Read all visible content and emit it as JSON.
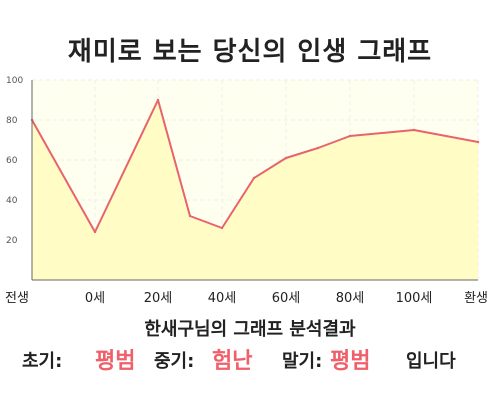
{
  "title": "재미로 보는 당신의 인생 그래프",
  "colors": {
    "line": "#e8636c",
    "fill": "#fffdc0",
    "plot_background": "#fffff0",
    "grid": "#ececec",
    "axis": "#666666",
    "highlight": "#f0606a"
  },
  "chart_data": {
    "type": "area",
    "x_ticks": [
      "전생",
      "0세",
      "20세",
      "40세",
      "60세",
      "80세",
      "100세",
      "환생"
    ],
    "y_ticks": [
      "20",
      "40",
      "60",
      "80",
      "100"
    ],
    "ylim": [
      0,
      100
    ],
    "grid": true,
    "points": [
      {
        "x": "전생",
        "y": 80
      },
      {
        "x": "0세",
        "y": 24
      },
      {
        "x": "20세",
        "y": 90
      },
      {
        "x": "30세",
        "y": 32
      },
      {
        "x": "35세",
        "y": 26
      },
      {
        "x": "45세",
        "y": 51
      },
      {
        "x": "55세",
        "y": 61
      },
      {
        "x": "65세",
        "y": 66
      },
      {
        "x": "75세",
        "y": 72
      },
      {
        "x": "100세",
        "y": 75
      },
      {
        "x": "환생",
        "y": 69
      }
    ]
  },
  "result": {
    "subtitle": "한새구님의 그래프 분석결과",
    "early_label": "초기:",
    "early_value": "평범",
    "middle_label": "중기:",
    "middle_value": "험난",
    "late_label": "말기:",
    "late_value": "평범",
    "suffix": "입니다"
  }
}
